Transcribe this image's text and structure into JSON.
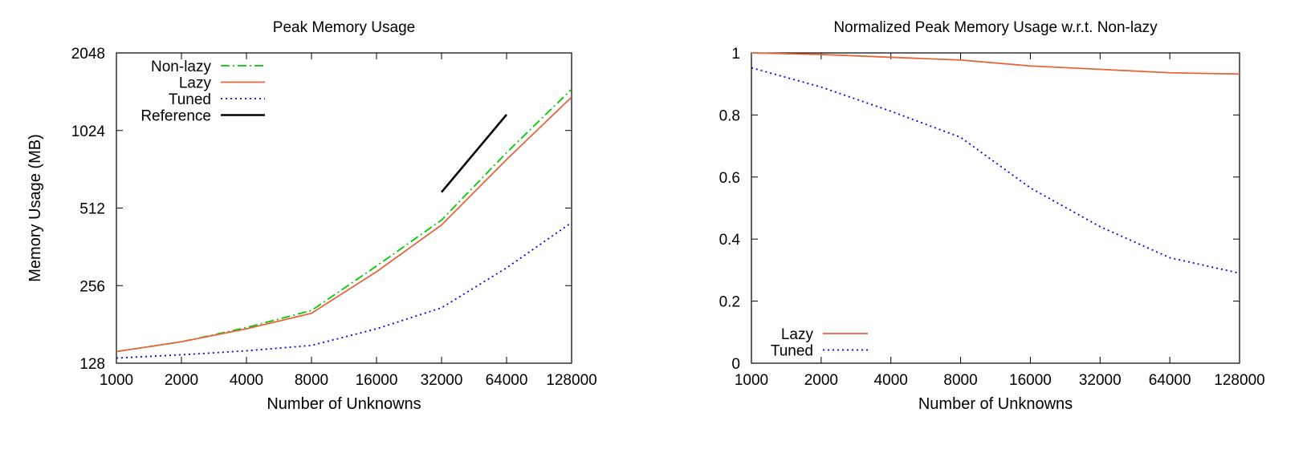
{
  "chart_data": [
    {
      "type": "line",
      "title": "Peak Memory Usage",
      "xlabel": "Number of Unknowns",
      "ylabel": "Memory Usage (MB)",
      "x_scale": "log2",
      "y_scale": "log2",
      "xlim": [
        1000,
        128000
      ],
      "ylim": [
        128,
        2048
      ],
      "x_ticks": [
        1000,
        2000,
        4000,
        8000,
        16000,
        32000,
        64000,
        128000
      ],
      "x_tick_labels": [
        "1000",
        "2000",
        "4000",
        "8000",
        "16000",
        "32000",
        "64000",
        "128000"
      ],
      "y_ticks": [
        128,
        256,
        512,
        1024,
        2048
      ],
      "y_tick_labels": [
        "128",
        "256",
        "512",
        "1024",
        "2048"
      ],
      "legend_position": "top-left",
      "grid": false,
      "series": [
        {
          "name": "Non-lazy",
          "color": "#00cc00",
          "dash": "dash-dot",
          "x": [
            1000,
            2000,
            4000,
            8000,
            16000,
            32000,
            64000,
            128000
          ],
          "y": [
            142,
            155,
            176,
            205,
            305,
            460,
            840,
            1480
          ]
        },
        {
          "name": "Lazy",
          "color": "#e8643c",
          "dash": "solid",
          "x": [
            1000,
            2000,
            4000,
            8000,
            16000,
            32000,
            64000,
            128000
          ],
          "y": [
            142,
            155,
            174,
            200,
            290,
            440,
            790,
            1380
          ]
        },
        {
          "name": "Tuned",
          "color": "#0000ee",
          "dash": "dotted",
          "x": [
            1000,
            2000,
            4000,
            8000,
            16000,
            32000,
            64000,
            128000
          ],
          "y": [
            134,
            138,
            143,
            150,
            174,
            210,
            300,
            450
          ]
        },
        {
          "name": "Reference",
          "color": "#000000",
          "dash": "solid",
          "x": [
            32000,
            64000
          ],
          "y": [
            590,
            1180
          ]
        }
      ]
    },
    {
      "type": "line",
      "title": "Normalized Peak Memory Usage w.r.t. Non-lazy",
      "xlabel": "Number of Unknowns",
      "ylabel": "",
      "x_scale": "log2",
      "y_scale": "linear",
      "xlim": [
        1000,
        128000
      ],
      "ylim": [
        0,
        1
      ],
      "x_ticks": [
        1000,
        2000,
        4000,
        8000,
        16000,
        32000,
        64000,
        128000
      ],
      "x_tick_labels": [
        "1000",
        "2000",
        "4000",
        "8000",
        "16000",
        "32000",
        "64000",
        "128000"
      ],
      "y_ticks": [
        0,
        0.2,
        0.4,
        0.6,
        0.8,
        1
      ],
      "y_tick_labels": [
        "0",
        "0.2",
        "0.4",
        "0.6",
        "0.8",
        "1"
      ],
      "legend_position": "bottom-left",
      "grid": false,
      "series": [
        {
          "name": "Lazy",
          "color": "#e8643c",
          "dash": "solid",
          "x": [
            1000,
            2000,
            4000,
            8000,
            16000,
            32000,
            64000,
            128000
          ],
          "y": [
            1.0,
            0.995,
            0.986,
            0.977,
            0.958,
            0.947,
            0.936,
            0.932
          ]
        },
        {
          "name": "Tuned",
          "color": "#0000ee",
          "dash": "dotted",
          "x": [
            1000,
            2000,
            4000,
            8000,
            16000,
            32000,
            64000,
            128000
          ],
          "y": [
            0.952,
            0.89,
            0.812,
            0.728,
            0.565,
            0.44,
            0.34,
            0.29
          ]
        }
      ]
    }
  ]
}
